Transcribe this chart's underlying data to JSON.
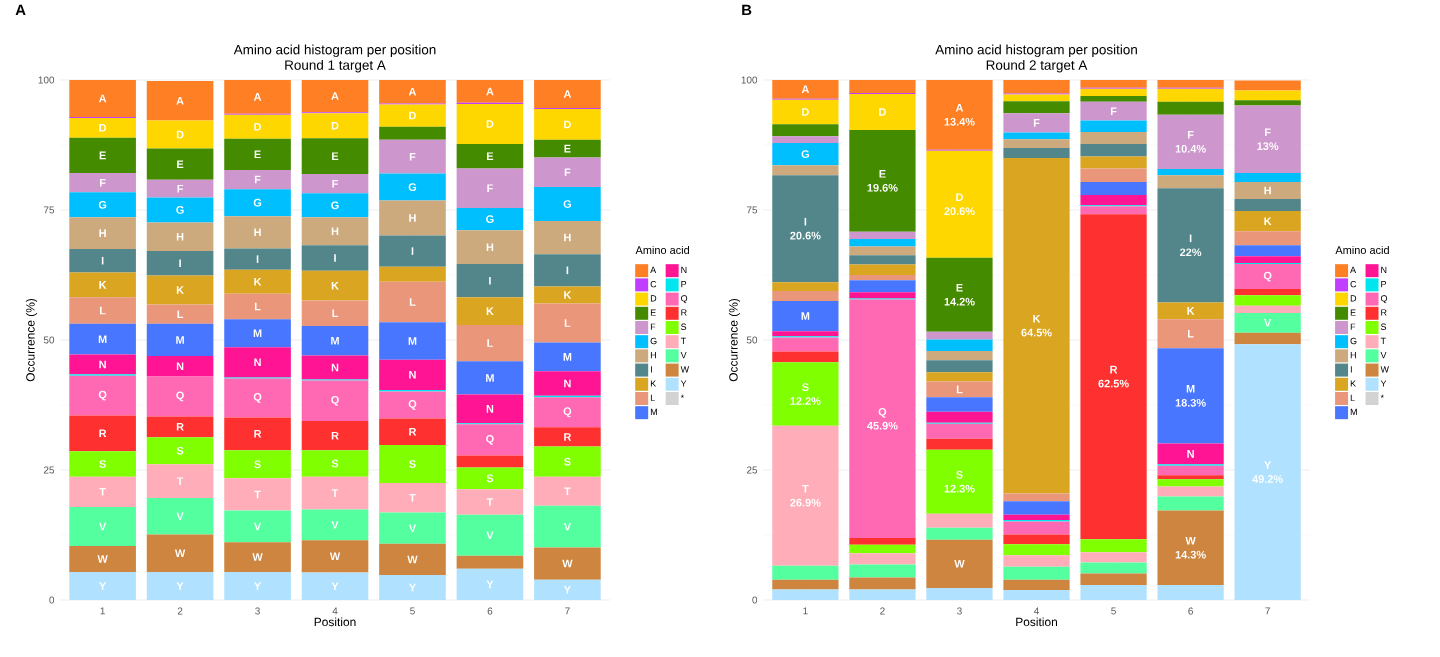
{
  "chart_data": [
    {
      "type": "bar",
      "stacked": true,
      "title": "Amino acid histogram per position",
      "subtitle": "Round 1 target A",
      "xlabel": "Position",
      "ylabel": "Occurrence (%)",
      "legend_title": "Amino acid",
      "legend": "right",
      "grid": true,
      "annotations": [
        "A"
      ],
      "categories": [
        "1",
        "2",
        "3",
        "4",
        "5",
        "6",
        "7"
      ],
      "ylim": [
        0,
        100
      ],
      "yticks": [
        0,
        25,
        50,
        75,
        100
      ],
      "series": [
        {
          "name": "*",
          "color": "#d3d3d3",
          "values": [
            0,
            0,
            0,
            0,
            0,
            0,
            0
          ]
        },
        {
          "name": "Y",
          "color": "#b0e2ff",
          "values": [
            5.4,
            5.4,
            5.4,
            5.3,
            4.8,
            6.0,
            3.9
          ]
        },
        {
          "name": "W",
          "color": "#cd853f",
          "values": [
            5.0,
            7.2,
            5.7,
            6.2,
            6.0,
            2.5,
            6.2
          ]
        },
        {
          "name": "V",
          "color": "#54ff9f",
          "values": [
            7.5,
            7.0,
            6.1,
            5.9,
            6.0,
            7.9,
            8.0
          ]
        },
        {
          "name": "T",
          "color": "#ffaeb9",
          "values": [
            5.8,
            6.5,
            6.2,
            6.3,
            5.7,
            4.9,
            5.6
          ]
        },
        {
          "name": "S",
          "color": "#7fff00",
          "values": [
            4.9,
            5.2,
            5.4,
            5.1,
            7.3,
            4.2,
            5.8
          ]
        },
        {
          "name": "R",
          "color": "#ff3030",
          "values": [
            6.9,
            4.0,
            6.3,
            5.6,
            5.1,
            2.3,
            3.7
          ]
        },
        {
          "name": "Q",
          "color": "#ff69b4",
          "values": [
            7.6,
            7.7,
            7.5,
            7.8,
            5.2,
            6.0,
            5.8
          ]
        },
        {
          "name": "P",
          "color": "#00e5ee",
          "values": [
            0.3,
            null,
            0.2,
            0.2,
            0.3,
            0.2,
            0.3
          ]
        },
        {
          "name": "N",
          "color": "#ff1493",
          "values": [
            3.8,
            3.9,
            5.8,
            4.6,
            5.8,
            5.5,
            4.7
          ]
        },
        {
          "name": "M",
          "color": "#4876ff",
          "values": [
            5.9,
            6.2,
            5.4,
            5.7,
            7.2,
            6.4,
            5.5
          ]
        },
        {
          "name": "L",
          "color": "#e9967a",
          "values": [
            5.1,
            3.7,
            4.9,
            4.9,
            7.8,
            7.0,
            7.5
          ]
        },
        {
          "name": "K",
          "color": "#daa520",
          "values": [
            4.8,
            5.6,
            4.6,
            5.7,
            2.9,
            5.3,
            3.3
          ]
        },
        {
          "name": "I",
          "color": "#53868b",
          "values": [
            4.5,
            4.7,
            4.1,
            4.9,
            6.0,
            6.4,
            6.2
          ]
        },
        {
          "name": "H",
          "color": "#cdaa7d",
          "values": [
            6.1,
            5.5,
            6.2,
            5.4,
            6.7,
            6.5,
            6.4
          ]
        },
        {
          "name": "G",
          "color": "#00bfff",
          "values": [
            4.8,
            4.8,
            5.2,
            4.6,
            5.2,
            4.3,
            6.5
          ]
        },
        {
          "name": "F",
          "color": "#cd96cd",
          "values": [
            3.7,
            3.4,
            3.7,
            3.7,
            6.5,
            7.6,
            5.7
          ]
        },
        {
          "name": "E",
          "color": "#458b00",
          "values": [
            6.8,
            6.0,
            6.0,
            6.9,
            2.5,
            4.7,
            3.4
          ]
        },
        {
          "name": "D",
          "color": "#ffd700",
          "values": [
            3.8,
            5.4,
            4.6,
            4.8,
            4.3,
            7.7,
            5.9
          ]
        },
        {
          "name": "C",
          "color": "#bf3eff",
          "values": [
            0.2,
            null,
            0.2,
            0.2,
            0.2,
            0.2,
            0.2
          ]
        },
        {
          "name": "A",
          "color": "#ff7f24",
          "values": [
            7.1,
            7.6,
            6.5,
            6.2,
            4.5,
            4.4,
            5.4
          ]
        }
      ]
    },
    {
      "type": "bar",
      "stacked": true,
      "title": "Amino acid histogram per position",
      "subtitle": "Round 2 target A",
      "xlabel": "Position",
      "ylabel": "Occurrence (%)",
      "legend_title": "Amino acid",
      "legend": "right",
      "grid": true,
      "annotations": [
        "B"
      ],
      "categories": [
        "1",
        "2",
        "3",
        "4",
        "5",
        "6",
        "7"
      ],
      "ylim": [
        0,
        100
      ],
      "yticks": [
        0,
        25,
        50,
        75,
        100
      ],
      "series": [
        {
          "name": "*",
          "color": "#d3d3d3",
          "values": [
            0,
            0,
            0,
            0,
            0,
            0,
            0
          ]
        },
        {
          "name": "Y",
          "color": "#b0e2ff",
          "values": [
            2.0,
            2.0,
            2.3,
            1.9,
            2.9,
            2.9,
            49.2
          ],
          "value_labels": [
            null,
            null,
            null,
            null,
            null,
            null,
            "49.2%"
          ]
        },
        {
          "name": "W",
          "color": "#cd853f",
          "values": [
            1.9,
            2.3,
            9.3,
            2.0,
            2.2,
            14.3,
            2.2
          ],
          "value_labels": [
            null,
            null,
            null,
            null,
            null,
            "14.3%",
            null
          ]
        },
        {
          "name": "V",
          "color": "#54ff9f",
          "values": [
            2.7,
            2.5,
            2.3,
            2.5,
            2.1,
            2.7,
            3.8
          ]
        },
        {
          "name": "T",
          "color": "#ffaeb9",
          "values": [
            26.9,
            2.2,
            2.7,
            2.2,
            2.0,
            1.9,
            1.4
          ],
          "value_labels": [
            "26.9%",
            null,
            null,
            null,
            null,
            null,
            null
          ]
        },
        {
          "name": "S",
          "color": "#7fff00",
          "values": [
            12.2,
            1.6,
            12.3,
            2.1,
            2.5,
            1.4,
            2.0
          ],
          "value_labels": [
            "12.2%",
            null,
            "12.3%",
            null,
            null,
            null,
            null
          ]
        },
        {
          "name": "R",
          "color": "#ff3030",
          "values": [
            2.1,
            1.3,
            2.1,
            1.9,
            62.5,
            0.8,
            1.2
          ],
          "value_labels": [
            null,
            null,
            null,
            null,
            "62.5%",
            null,
            null
          ]
        },
        {
          "name": "Q",
          "color": "#ff69b4",
          "values": [
            2.7,
            45.9,
            2.9,
            2.5,
            1.5,
            1.8,
            4.8
          ],
          "value_labels": [
            null,
            "45.9%",
            null,
            null,
            null,
            null,
            null
          ]
        },
        {
          "name": "P",
          "color": "#00e5ee",
          "values": [
            0.2,
            0.2,
            0.2,
            0.3,
            0.2,
            0.3,
            0.2
          ]
        },
        {
          "name": "N",
          "color": "#ff1493",
          "values": [
            1.0,
            1.2,
            2.1,
            1.0,
            2.0,
            4.0,
            1.3
          ]
        },
        {
          "name": "M",
          "color": "#4876ff",
          "values": [
            5.8,
            2.3,
            2.8,
            2.6,
            2.5,
            18.3,
            2.1
          ],
          "value_labels": [
            null,
            null,
            null,
            null,
            null,
            "18.3%",
            null
          ]
        },
        {
          "name": "L",
          "color": "#e9967a",
          "values": [
            1.9,
            1.0,
            3.0,
            1.5,
            2.6,
            5.6,
            2.7
          ]
        },
        {
          "name": "K",
          "color": "#daa520",
          "values": [
            1.7,
            2.0,
            1.8,
            64.5,
            2.3,
            3.2,
            3.9
          ],
          "value_labels": [
            null,
            null,
            null,
            "64.5%",
            null,
            null,
            null
          ]
        },
        {
          "name": "I",
          "color": "#53868b",
          "values": [
            20.6,
            1.8,
            2.3,
            1.9,
            2.4,
            22,
            2.3
          ],
          "value_labels": [
            "20.6%",
            null,
            null,
            null,
            null,
            "22%",
            null
          ]
        },
        {
          "name": "H",
          "color": "#cdaa7d",
          "values": [
            1.9,
            1.7,
            1.8,
            1.7,
            2.3,
            2.5,
            3.3
          ]
        },
        {
          "name": "G",
          "color": "#00bfff",
          "values": [
            4.3,
            1.4,
            2.2,
            1.3,
            2.2,
            1.2,
            1.7
          ]
        },
        {
          "name": "F",
          "color": "#cd96cd",
          "values": [
            1.3,
            1.4,
            1.5,
            3.7,
            3.6,
            10.4,
            13
          ],
          "value_labels": [
            null,
            null,
            null,
            null,
            null,
            "10.4%",
            "13%"
          ]
        },
        {
          "name": "E",
          "color": "#458b00",
          "values": [
            2.3,
            19.6,
            14.2,
            2.3,
            1.1,
            2.5,
            1.0
          ],
          "value_labels": [
            null,
            "19.6%",
            "14.2%",
            null,
            null,
            null,
            null
          ]
        },
        {
          "name": "D",
          "color": "#ffd700",
          "values": [
            4.7,
            6.9,
            20.6,
            1.3,
            1.4,
            2.5,
            1.9
          ],
          "value_labels": [
            null,
            null,
            "20.6%",
            null,
            null,
            null,
            null
          ]
        },
        {
          "name": "C",
          "color": "#bf3eff",
          "values": [
            0.2,
            0.2,
            0.2,
            0.2,
            0.2,
            0.2,
            null
          ]
        },
        {
          "name": "A",
          "color": "#ff7f24",
          "values": [
            3.6,
            2.5,
            13.4,
            2.6,
            1.5,
            1.5,
            1.9
          ],
          "value_labels": [
            null,
            null,
            "13.4%",
            null,
            null,
            null,
            null
          ]
        }
      ]
    }
  ]
}
